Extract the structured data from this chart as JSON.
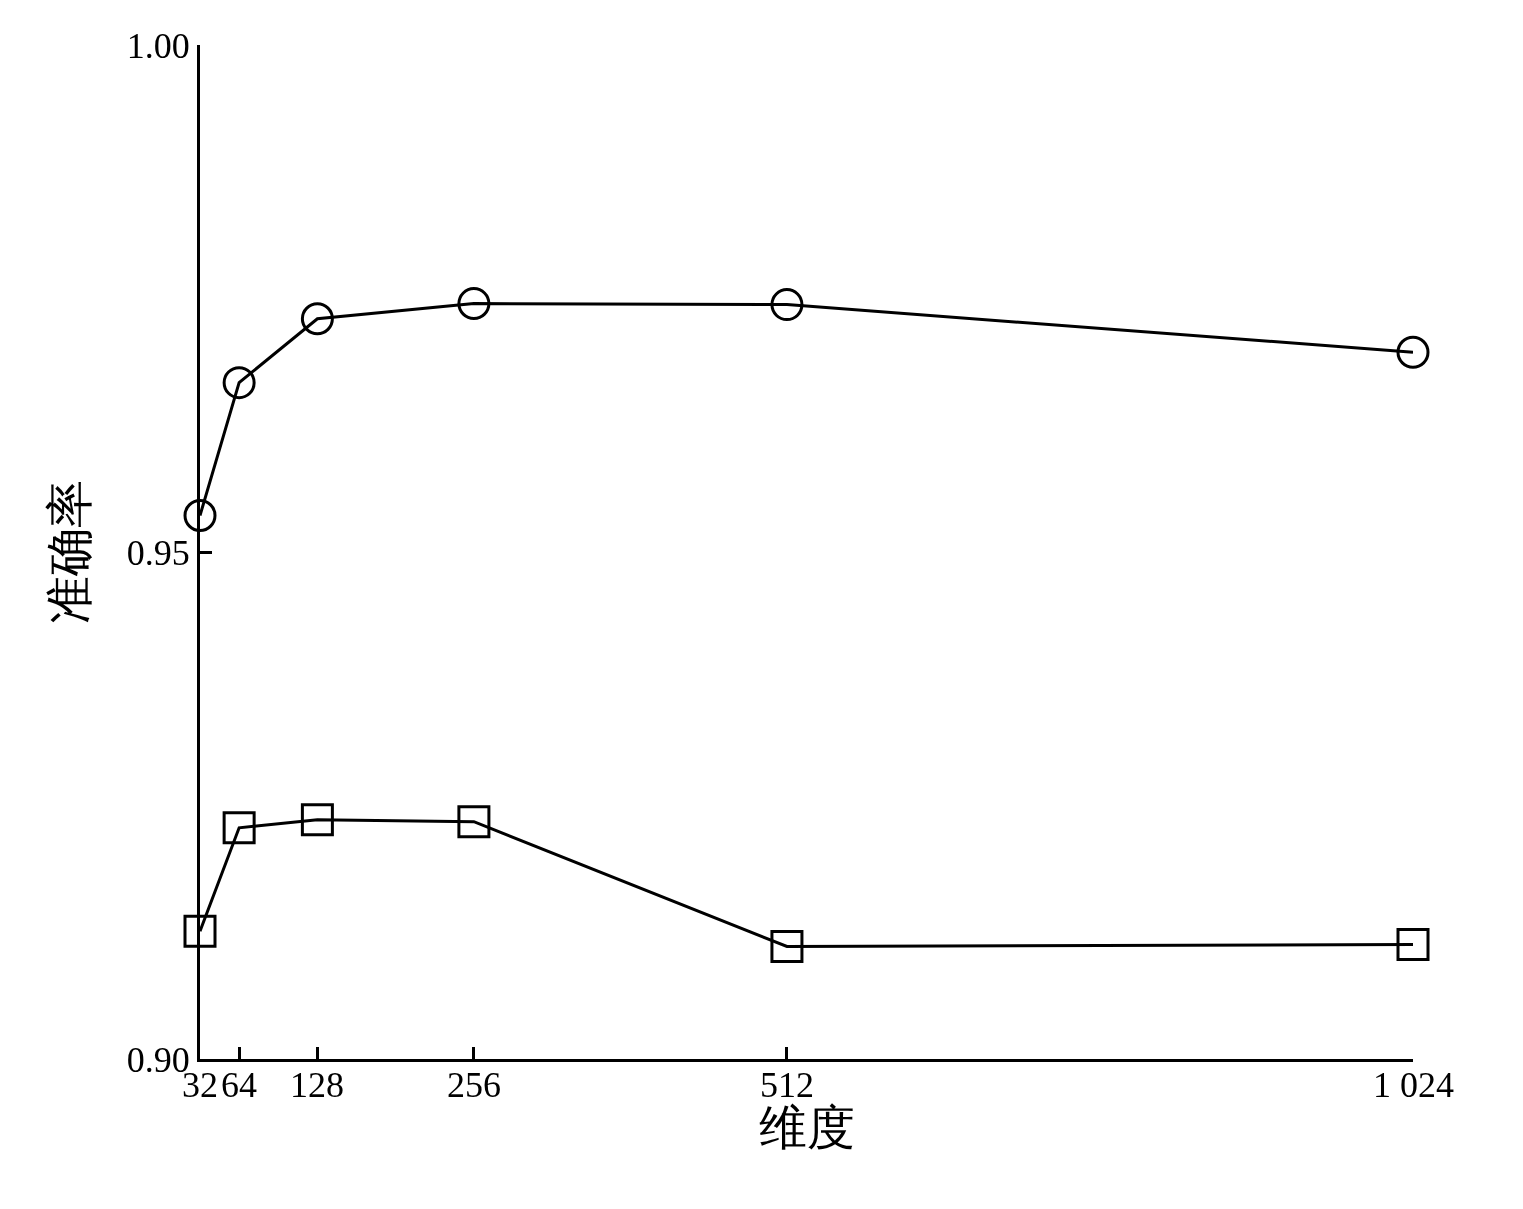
{
  "chart_data": {
    "type": "line",
    "xlabel": "维度",
    "ylabel": "准确率",
    "x": [
      32,
      64,
      128,
      256,
      512,
      1024
    ],
    "series": [
      {
        "color": "#000000",
        "marker": "circle",
        "values": [
          0.9536,
          0.9667,
          0.973,
          0.9745,
          0.9744,
          0.9697
        ]
      },
      {
        "color": "#000000",
        "marker": "square",
        "values": [
          0.9126,
          0.9228,
          0.9236,
          0.9234,
          0.9111,
          0.9113
        ]
      }
    ],
    "xlim": [
      32,
      1024
    ],
    "xticks": [
      32,
      64,
      128,
      256,
      512,
      {
        "value": 1024,
        "label": "1 024"
      }
    ],
    "ylim": [
      0.9,
      1.0
    ],
    "yticks": [
      {
        "value": 0.9,
        "label": "0.90"
      },
      {
        "value": 0.95,
        "label": "0.95"
      },
      {
        "value": 1.0,
        "label": "1.00"
      }
    ],
    "line_style": "solid"
  }
}
